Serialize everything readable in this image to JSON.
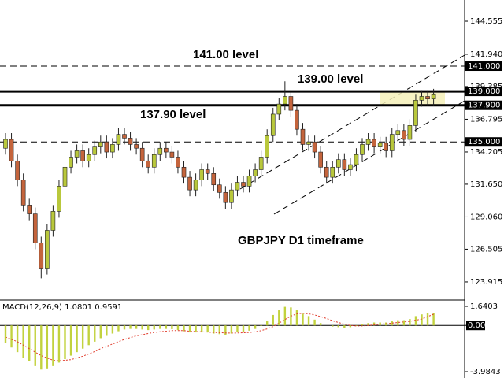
{
  "chart_data": [
    {
      "type": "candlestick",
      "annotations": [
        "141.00 level",
        "139.00 level",
        "137.90 level",
        "GBPJPY D1 timeframe"
      ],
      "open": [
        134.5,
        135.2,
        133.5,
        132.0,
        130.0,
        129.3,
        127.0,
        125.0,
        128.0,
        129.5,
        131.5,
        133.0,
        133.8,
        134.3,
        133.5,
        134.0,
        134.6,
        135.0,
        134.2,
        134.8,
        135.6,
        135.3,
        134.8,
        134.5,
        133.5,
        133.0,
        134.0,
        134.5,
        134.2,
        133.8,
        133.0,
        132.2,
        131.2,
        132.0,
        132.8,
        132.5,
        131.6,
        131.0,
        130.2,
        131.2,
        131.8,
        131.5,
        132.3,
        132.8,
        133.8,
        135.5,
        137.2,
        138.0,
        138.6,
        137.5,
        136.0,
        134.8,
        135.0,
        134.2,
        133.0,
        132.2,
        133.0,
        133.6,
        132.8,
        133.2,
        134.0,
        134.8,
        135.2,
        134.6,
        134.9,
        134.3,
        135.6,
        135.9,
        135.2,
        136.3,
        138.3,
        138.6,
        138.4
      ],
      "high": [
        135.7,
        135.7,
        134.0,
        132.5,
        130.5,
        129.8,
        127.5,
        128.5,
        130.0,
        132.0,
        133.5,
        134.3,
        134.8,
        134.8,
        134.5,
        135.1,
        135.5,
        135.5,
        135.3,
        136.1,
        136.1,
        135.8,
        135.3,
        135.0,
        134.0,
        134.5,
        135.0,
        135.0,
        134.7,
        134.3,
        133.5,
        132.7,
        132.5,
        133.3,
        133.3,
        133.0,
        132.1,
        131.5,
        131.7,
        132.3,
        132.3,
        132.8,
        133.3,
        134.3,
        136.0,
        137.7,
        138.5,
        139.8,
        139.1,
        138.0,
        136.5,
        135.5,
        135.5,
        134.7,
        133.5,
        133.5,
        134.1,
        134.1,
        133.7,
        134.5,
        135.3,
        135.7,
        135.7,
        135.4,
        135.4,
        136.1,
        136.4,
        136.4,
        136.8,
        138.8,
        139.1,
        139.1,
        139.2
      ],
      "low": [
        134.0,
        133.0,
        131.5,
        129.5,
        128.8,
        126.5,
        124.2,
        124.5,
        127.5,
        129.0,
        131.0,
        132.5,
        133.3,
        133.0,
        133.0,
        133.5,
        134.1,
        133.7,
        133.7,
        134.3,
        134.8,
        134.3,
        134.0,
        133.0,
        132.5,
        132.5,
        133.5,
        133.7,
        133.3,
        132.5,
        131.7,
        130.7,
        130.7,
        131.5,
        132.0,
        131.1,
        130.5,
        129.7,
        129.7,
        130.7,
        131.0,
        131.0,
        131.8,
        132.3,
        133.3,
        135.0,
        136.7,
        137.5,
        137.0,
        135.5,
        134.3,
        134.3,
        133.7,
        132.5,
        131.7,
        131.7,
        132.5,
        132.3,
        132.3,
        132.7,
        133.5,
        134.3,
        134.1,
        134.1,
        133.8,
        133.8,
        135.1,
        134.7,
        134.7,
        135.8,
        137.8,
        137.9,
        137.9
      ],
      "close": [
        135.2,
        133.5,
        132.0,
        130.0,
        129.3,
        127.0,
        125.0,
        128.0,
        129.5,
        131.5,
        133.0,
        133.8,
        134.3,
        133.5,
        134.0,
        134.6,
        135.0,
        134.2,
        134.8,
        135.6,
        135.3,
        134.8,
        134.5,
        133.5,
        133.0,
        134.0,
        134.5,
        134.2,
        133.8,
        133.0,
        132.2,
        131.2,
        132.0,
        132.8,
        132.5,
        131.6,
        131.0,
        130.2,
        131.2,
        131.8,
        131.5,
        132.3,
        132.8,
        133.8,
        135.5,
        137.2,
        138.0,
        138.6,
        137.5,
        136.0,
        134.8,
        135.0,
        134.2,
        133.0,
        132.2,
        133.0,
        133.6,
        132.8,
        133.2,
        134.0,
        134.8,
        135.2,
        134.6,
        134.9,
        134.3,
        135.6,
        135.9,
        135.2,
        136.3,
        138.3,
        138.6,
        138.4,
        138.8
      ],
      "up_color": "#b9c83c",
      "down_color": "#c4643c",
      "ylim": [
        122.54,
        146.24
      ],
      "yticks": [
        144.555,
        {
          "value": 141.94,
          "label": "141.940"
        },
        139.385,
        136.795,
        134.205,
        {
          "value": 131.65,
          "label": "131.650"
        },
        {
          "value": 129.06,
          "label": "129.060"
        },
        126.505,
        123.915
      ],
      "levels": [
        {
          "value": 141.0,
          "label": "141.000",
          "style": "dashed"
        },
        {
          "value": 139.0,
          "label": "139.000",
          "style": "solid"
        },
        {
          "value": 137.9,
          "label": "137.900",
          "style": "solid"
        },
        {
          "value": 135.0,
          "label": "135.000",
          "style": "dashed"
        }
      ]
    },
    {
      "type": "macd",
      "title": "MACD(12,26,9) 1.0801 0.9591",
      "values": [
        -1.5,
        -1.9,
        -2.3,
        -2.8,
        -3.1,
        -3.5,
        -3.8,
        -3.7,
        -3.5,
        -3.2,
        -2.9,
        -2.6,
        -2.3,
        -2.0,
        -1.7,
        -1.4,
        -1.1,
        -0.9,
        -0.7,
        -0.5,
        -0.35,
        -0.3,
        -0.3,
        -0.35,
        -0.4,
        -0.35,
        -0.3,
        -0.3,
        -0.32,
        -0.4,
        -0.5,
        -0.6,
        -0.6,
        -0.6,
        -0.6,
        -0.7,
        -0.75,
        -0.8,
        -0.7,
        -0.6,
        -0.55,
        -0.45,
        -0.3,
        -0.05,
        0.35,
        0.9,
        1.3,
        1.6,
        1.55,
        1.3,
        1.0,
        0.8,
        0.5,
        0.2,
        0.0,
        -0.1,
        -0.15,
        -0.2,
        -0.15,
        -0.05,
        0.1,
        0.2,
        0.25,
        0.25,
        0.25,
        0.35,
        0.45,
        0.45,
        0.55,
        0.8,
        0.95,
        1.05,
        1.08
      ],
      "signal": [
        -1.0,
        -1.2,
        -1.4,
        -1.7,
        -2.0,
        -2.3,
        -2.6,
        -2.8,
        -3.0,
        -3.05,
        -3.0,
        -2.95,
        -2.8,
        -2.65,
        -2.45,
        -2.25,
        -2.0,
        -1.8,
        -1.6,
        -1.4,
        -1.2,
        -1.05,
        -0.9,
        -0.8,
        -0.7,
        -0.6,
        -0.55,
        -0.5,
        -0.45,
        -0.45,
        -0.45,
        -0.5,
        -0.52,
        -0.55,
        -0.57,
        -0.6,
        -0.62,
        -0.65,
        -0.66,
        -0.65,
        -0.63,
        -0.6,
        -0.55,
        -0.45,
        -0.3,
        -0.1,
        0.2,
        0.5,
        0.8,
        1.0,
        1.05,
        1.0,
        0.9,
        0.75,
        0.6,
        0.4,
        0.25,
        0.1,
        0.0,
        -0.05,
        -0.05,
        0.0,
        0.05,
        0.1,
        0.15,
        0.2,
        0.25,
        0.3,
        0.35,
        0.45,
        0.55,
        0.75,
        0.96
      ],
      "color": "#c2d23e",
      "signal_color": "#e03a2a",
      "ylim": [
        -4.526,
        2.047
      ],
      "yticks": [
        1.6403,
        {
          "value": 0,
          "label": "0.00"
        },
        -3.9843
      ]
    }
  ]
}
